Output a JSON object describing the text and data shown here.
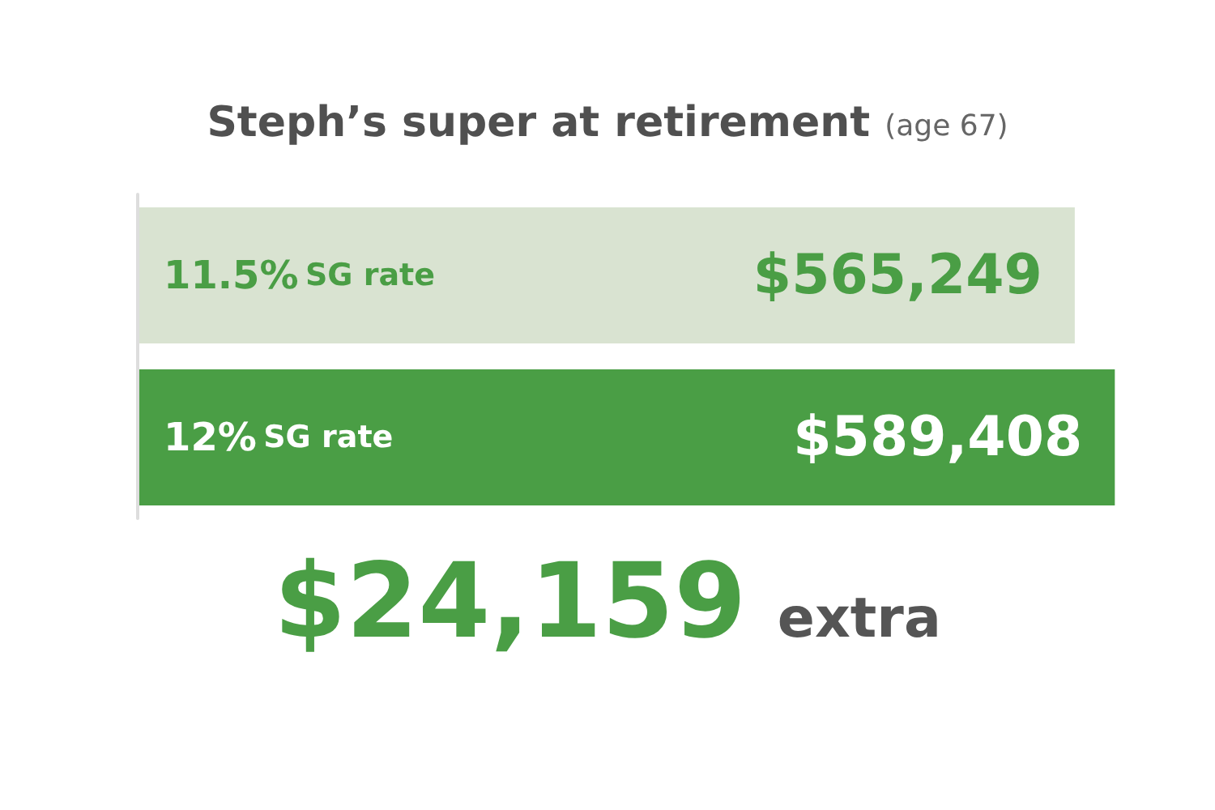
{
  "chart_data": {
    "type": "bar",
    "orientation": "horizontal",
    "title": "Steph’s super at retirement",
    "subtitle": "(age 67)",
    "categories": [
      "11.5% SG rate",
      "12% SG rate"
    ],
    "series": [
      {
        "colors": [
          "#d9e3d1",
          "#4a9e45"
        ],
        "values": [
          565249,
          589408
        ],
        "value_labels": [
          "$565,249",
          "$589,408"
        ]
      }
    ],
    "tick_labels": false,
    "grid": false,
    "annotations": [
      "$24,159 extra"
    ]
  }
}
